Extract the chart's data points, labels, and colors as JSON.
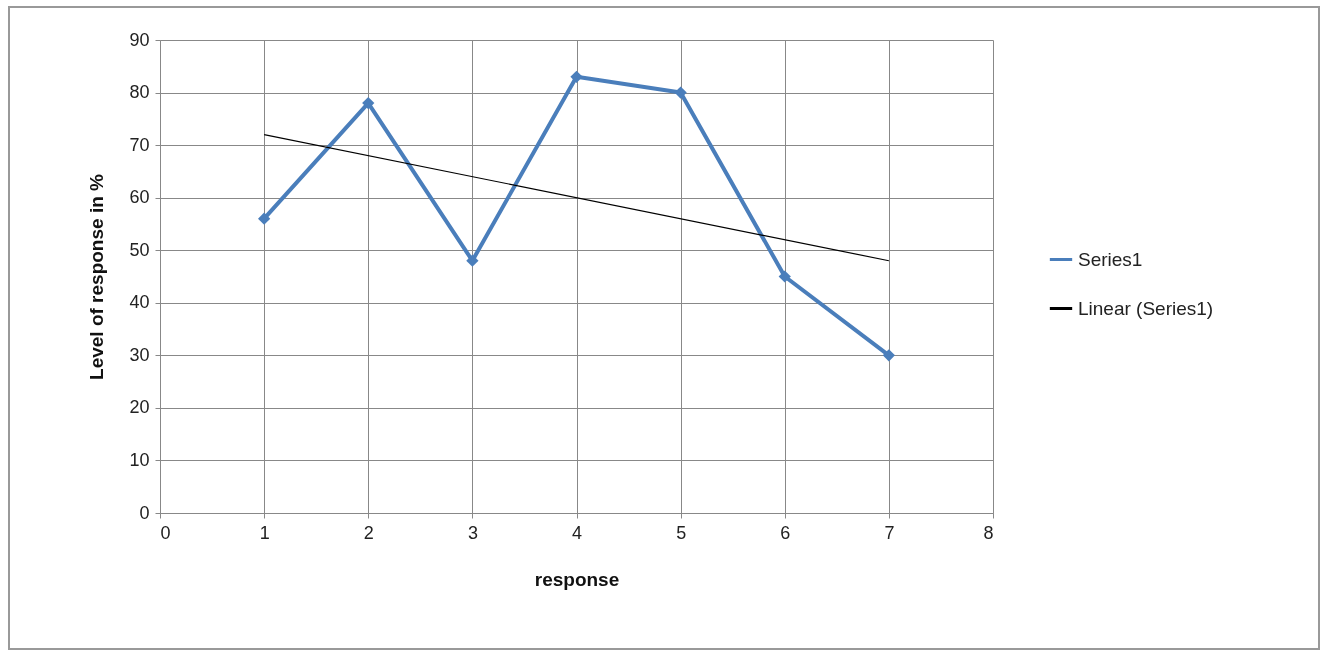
{
  "chart_data": {
    "type": "line",
    "xlabel": "response",
    "ylabel": "Level of response in %",
    "xlim": [
      0,
      8
    ],
    "xticks": [
      0,
      1,
      2,
      3,
      4,
      5,
      6,
      7,
      8
    ],
    "ylim": [
      0,
      90
    ],
    "yticks": [
      0,
      10,
      20,
      30,
      40,
      50,
      60,
      70,
      80,
      90
    ],
    "grid": true,
    "legend": "right",
    "marker": "diamond",
    "series": [
      {
        "name": "Series1",
        "color": "#4a7ebb",
        "x": [
          1,
          2,
          3,
          4,
          5,
          6,
          7
        ],
        "values": [
          56,
          78,
          48,
          83,
          80,
          45,
          30
        ]
      },
      {
        "name": "Linear (Series1)",
        "color": "#000000",
        "type": "line",
        "marker": "none",
        "x": [
          1,
          7
        ],
        "values": [
          72,
          48
        ]
      }
    ]
  }
}
